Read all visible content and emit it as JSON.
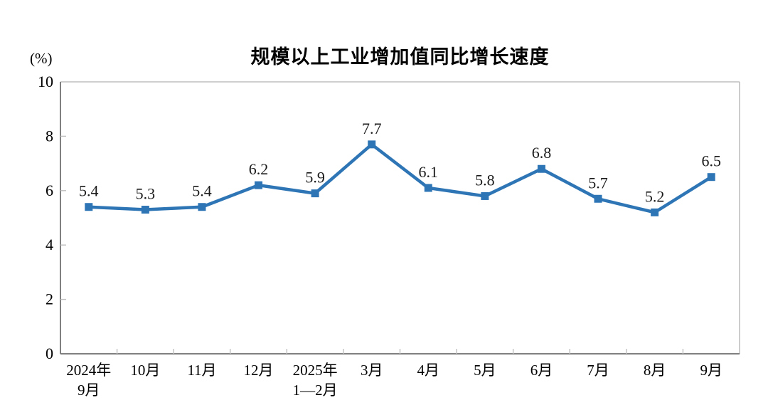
{
  "chart_data": {
    "type": "line",
    "title": "规模以上工业增加值同比增长速度",
    "ylabel": "(%)",
    "xlabel": "",
    "categories": [
      [
        "2024年",
        "9月"
      ],
      [
        "10月"
      ],
      [
        "11月"
      ],
      [
        "12月"
      ],
      [
        "2025年",
        "1—2月"
      ],
      [
        "3月"
      ],
      [
        "4月"
      ],
      [
        "5月"
      ],
      [
        "6月"
      ],
      [
        "7月"
      ],
      [
        "8月"
      ],
      [
        "9月"
      ]
    ],
    "values": [
      5.4,
      5.3,
      5.4,
      6.2,
      5.9,
      7.7,
      6.1,
      5.8,
      6.8,
      5.7,
      5.2,
      6.5
    ],
    "ylim": [
      0,
      10
    ],
    "ytick_step": 2,
    "grid": false,
    "legend_position": "none",
    "colors": {
      "line": "#2E75B6",
      "marker": "#2E75B6",
      "axis": "#808080",
      "border": "#BFBFBF",
      "tick": "#BFBFBF",
      "text": "#1a1a1a"
    }
  }
}
